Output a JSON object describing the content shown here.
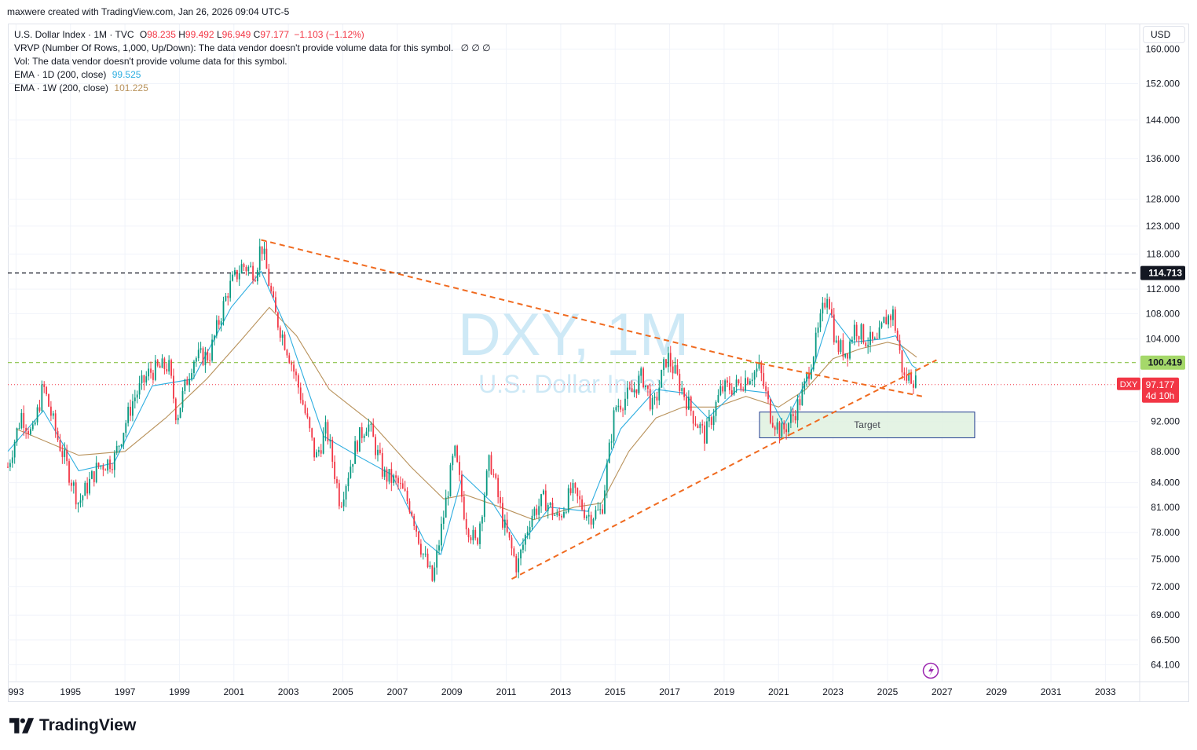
{
  "header": {
    "attribution": "maxwere created with TradingView.com, Jan 26, 2026 09:04 UTC-5"
  },
  "legend": {
    "symbol": "U.S. Dollar Index · 1M · TVC",
    "open_label": "O",
    "open": "98.235",
    "high_label": "H",
    "high": "99.492",
    "low_label": "L",
    "low": "96.949",
    "close_label": "C",
    "close": "97.177",
    "change": "−1.103 (−1.12%)",
    "vrvp": "VRVP (Number Of Rows, 1,000, Up/Down): The data vendor doesn't provide volume data for this symbol.",
    "vrvp_flags": "∅  ∅  ∅",
    "vol": "Vol: The data vendor doesn't provide volume data for this symbol.",
    "ema1_label": "EMA · 1D (200, close)",
    "ema1_value": "99.525",
    "ema2_label": "EMA · 1W (200, close)",
    "ema2_value": "101.225"
  },
  "currency_button": "USD",
  "watermark": {
    "title": "DXY, 1M",
    "subtitle": "U.S. Dollar Index"
  },
  "footer": {
    "brand": "TradingView"
  },
  "colors": {
    "up": "#089981",
    "down": "#f23645",
    "ema1": "#2eaee0",
    "ema2": "#b8915a",
    "trend": "#f06a1f",
    "level_black": "#131722",
    "level_green": "#8bc34a",
    "price_dotted": "#f23645",
    "target_fill": "#dff1df",
    "target_border": "#1f3b8f"
  },
  "chart_data": {
    "type": "candlestick",
    "symbol": "DXY",
    "timeframe": "1M",
    "y_scale": "log",
    "ylim": [
      62.5,
      166
    ],
    "xlim": [
      1992.7,
      2034.2
    ],
    "x_ticks": [
      "993",
      "1995",
      "1997",
      "1999",
      "2001",
      "2003",
      "2005",
      "2007",
      "2009",
      "2011",
      "2013",
      "2015",
      "2017",
      "2019",
      "2021",
      "2023",
      "2025",
      "2027",
      "2029",
      "2031",
      "2033"
    ],
    "y_ticks": [
      "160.000",
      "152.000",
      "144.000",
      "136.000",
      "128.000",
      "123.000",
      "118.000",
      "112.000",
      "108.000",
      "104.000",
      "92.000",
      "88.000",
      "84.000",
      "81.000",
      "78.000",
      "75.000",
      "72.000",
      "69.000",
      "66.500",
      "64.100"
    ],
    "price_path": [
      [
        1992.7,
        86.0
      ],
      [
        1993.2,
        93.0
      ],
      [
        1993.6,
        90.0
      ],
      [
        1994.0,
        97.0
      ],
      [
        1994.5,
        90.0
      ],
      [
        1995.3,
        81.5
      ],
      [
        1996.0,
        86.0
      ],
      [
        1996.6,
        87.0
      ],
      [
        1997.3,
        95.0
      ],
      [
        1997.9,
        99.0
      ],
      [
        1998.6,
        100.0
      ],
      [
        1998.9,
        92.5
      ],
      [
        1999.5,
        101.0
      ],
      [
        2000.1,
        101.5
      ],
      [
        2000.8,
        112.0
      ],
      [
        2001.3,
        116.0
      ],
      [
        2001.8,
        115.0
      ],
      [
        2002.0,
        120.0
      ],
      [
        2002.5,
        108.0
      ],
      [
        2003.0,
        102.0
      ],
      [
        2003.5,
        95.0
      ],
      [
        2004.0,
        87.0
      ],
      [
        2004.4,
        91.0
      ],
      [
        2004.9,
        81.5
      ],
      [
        2005.5,
        89.0
      ],
      [
        2005.9,
        92.0
      ],
      [
        2006.5,
        85.0
      ],
      [
        2007.0,
        84.0
      ],
      [
        2007.5,
        81.0
      ],
      [
        2007.9,
        76.0
      ],
      [
        2008.3,
        72.5
      ],
      [
        2008.7,
        80.0
      ],
      [
        2009.1,
        88.0
      ],
      [
        2009.5,
        79.5
      ],
      [
        2009.9,
        76.5
      ],
      [
        2010.4,
        87.0
      ],
      [
        2010.9,
        79.0
      ],
      [
        2011.4,
        74.0
      ],
      [
        2011.9,
        80.0
      ],
      [
        2012.4,
        82.0
      ],
      [
        2012.9,
        79.5
      ],
      [
        2013.4,
        83.0
      ],
      [
        2014.0,
        80.0
      ],
      [
        2014.5,
        80.5
      ],
      [
        2015.0,
        94.0
      ],
      [
        2015.6,
        96.0
      ],
      [
        2016.0,
        98.5
      ],
      [
        2016.4,
        93.5
      ],
      [
        2016.9,
        101.5
      ],
      [
        2017.4,
        97.0
      ],
      [
        2017.9,
        92.5
      ],
      [
        2018.3,
        90.0
      ],
      [
        2018.9,
        96.5
      ],
      [
        2019.5,
        97.0
      ],
      [
        2019.9,
        98.5
      ],
      [
        2020.3,
        99.5
      ],
      [
        2020.7,
        93.0
      ],
      [
        2021.1,
        90.5
      ],
      [
        2021.5,
        92.5
      ],
      [
        2021.9,
        96.0
      ],
      [
        2022.4,
        104.0
      ],
      [
        2022.8,
        112.0
      ],
      [
        2023.1,
        103.0
      ],
      [
        2023.5,
        102.0
      ],
      [
        2023.8,
        106.0
      ],
      [
        2024.2,
        104.0
      ],
      [
        2024.6,
        103.0
      ],
      [
        2024.9,
        107.0
      ],
      [
        2025.2,
        108.0
      ],
      [
        2025.6,
        98.0
      ],
      [
        2025.9,
        98.5
      ],
      [
        2026.07,
        97.177
      ]
    ],
    "ema_1d_200_path": [
      [
        1992.7,
        88.0
      ],
      [
        1994.0,
        93.5
      ],
      [
        1995.3,
        85.5
      ],
      [
        1996.6,
        86.5
      ],
      [
        1998.0,
        97.0
      ],
      [
        1999.5,
        98.0
      ],
      [
        2000.9,
        109.0
      ],
      [
        2002.0,
        115.0
      ],
      [
        2003.0,
        105.0
      ],
      [
        2004.3,
        90.0
      ],
      [
        2005.5,
        87.5
      ],
      [
        2006.8,
        85.0
      ],
      [
        2008.0,
        77.0
      ],
      [
        2008.6,
        75.5
      ],
      [
        2009.4,
        85.0
      ],
      [
        2010.5,
        81.5
      ],
      [
        2011.5,
        76.5
      ],
      [
        2012.6,
        81.0
      ],
      [
        2014.0,
        80.5
      ],
      [
        2015.2,
        91.0
      ],
      [
        2016.5,
        96.5
      ],
      [
        2017.5,
        96.0
      ],
      [
        2018.4,
        92.5
      ],
      [
        2019.5,
        96.5
      ],
      [
        2020.6,
        96.0
      ],
      [
        2021.2,
        91.5
      ],
      [
        2022.3,
        100.0
      ],
      [
        2022.9,
        108.0
      ],
      [
        2023.7,
        103.5
      ],
      [
        2024.8,
        104.0
      ],
      [
        2025.3,
        104.5
      ],
      [
        2025.9,
        100.0
      ],
      [
        2026.07,
        99.525
      ]
    ],
    "ema_1w_200_path": [
      [
        1993.0,
        91.0
      ],
      [
        1995.3,
        87.5
      ],
      [
        1997.0,
        88.0
      ],
      [
        1998.5,
        92.5
      ],
      [
        2000.0,
        98.0
      ],
      [
        2001.3,
        104.0
      ],
      [
        2002.3,
        109.0
      ],
      [
        2003.3,
        104.5
      ],
      [
        2004.5,
        96.5
      ],
      [
        2006.0,
        92.0
      ],
      [
        2007.5,
        86.0
      ],
      [
        2008.7,
        82.0
      ],
      [
        2009.5,
        82.5
      ],
      [
        2010.8,
        81.0
      ],
      [
        2012.0,
        79.5
      ],
      [
        2013.5,
        81.0
      ],
      [
        2014.5,
        81.5
      ],
      [
        2015.5,
        88.0
      ],
      [
        2016.5,
        92.5
      ],
      [
        2017.5,
        94.0
      ],
      [
        2018.7,
        94.0
      ],
      [
        2019.8,
        95.5
      ],
      [
        2021.0,
        94.0
      ],
      [
        2022.0,
        96.5
      ],
      [
        2023.0,
        101.0
      ],
      [
        2024.0,
        102.5
      ],
      [
        2025.0,
        103.5
      ],
      [
        2025.5,
        103.0
      ],
      [
        2026.07,
        101.225
      ]
    ],
    "trendlines": [
      {
        "from": [
          2002.0,
          120.5
        ],
        "to": [
          2020.3,
          100.3
        ]
      },
      {
        "from": [
          2020.3,
          100.3
        ],
        "to": [
          2026.4,
          95.4
        ]
      },
      {
        "from": [
          2011.2,
          72.8
        ],
        "to": [
          2021.4,
          90.2
        ]
      },
      {
        "from": [
          2021.4,
          90.2
        ],
        "to": [
          2026.8,
          100.8
        ]
      }
    ],
    "horizontal_levels": [
      {
        "label": "114.713",
        "value": 114.713,
        "style": "dashed",
        "color": "#131722"
      },
      {
        "label": "100.419",
        "value": 100.419,
        "style": "dashed",
        "color": "#8bc34a"
      }
    ],
    "current_price": {
      "symbol": "DXY",
      "label": "97.177",
      "value": 97.177,
      "countdown": "4d 10h"
    },
    "target_box": {
      "label": "Target",
      "x_from": 2020.3,
      "x_to": 2028.2,
      "y_from": 89.8,
      "y_to": 93.3
    }
  }
}
